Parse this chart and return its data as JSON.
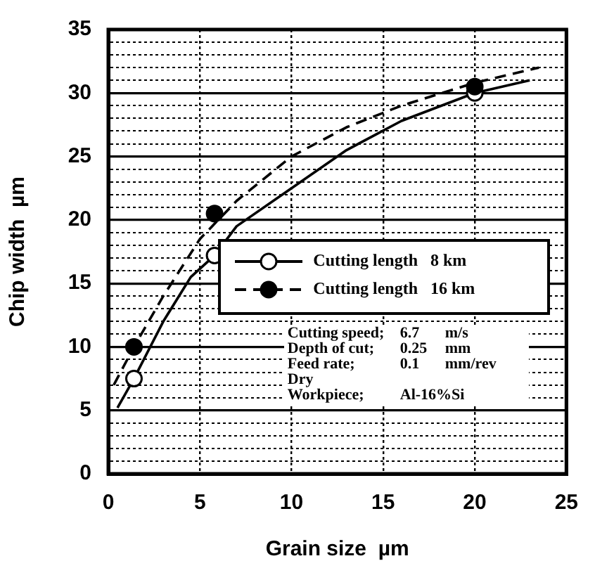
{
  "chart_data": {
    "type": "scatter",
    "xlabel": "Grain size  µm",
    "ylabel": "Chip width  µm",
    "xlim": [
      0,
      25
    ],
    "xticks": [
      0,
      5,
      10,
      15,
      20,
      25
    ],
    "ylim": [
      0,
      35
    ],
    "yticks": [
      0,
      {
        "value": 1,
        "label": null
      },
      {
        "value": 2,
        "label": null
      },
      {
        "value": 3,
        "label": null
      },
      {
        "value": 4,
        "label": null
      },
      5,
      {
        "value": 6,
        "label": null
      },
      {
        "value": 7,
        "label": null
      },
      {
        "value": 8,
        "label": null
      },
      {
        "value": 9,
        "label": null
      },
      10,
      {
        "value": 11,
        "label": null
      },
      {
        "value": 12,
        "label": null
      },
      {
        "value": 13,
        "label": null
      },
      {
        "value": 14,
        "label": null
      },
      15,
      {
        "value": 16,
        "label": null
      },
      {
        "value": 17,
        "label": null
      },
      {
        "value": 18,
        "label": null
      },
      {
        "value": 19,
        "label": null
      },
      20,
      {
        "value": 21,
        "label": null
      },
      {
        "value": 22,
        "label": null
      },
      {
        "value": 23,
        "label": null
      },
      {
        "value": 24,
        "label": null
      },
      25,
      {
        "value": 26,
        "label": null
      },
      {
        "value": 27,
        "label": null
      },
      {
        "value": 28,
        "label": null
      },
      {
        "value": 29,
        "label": null
      },
      30,
      {
        "value": 31,
        "label": null
      },
      {
        "value": 32,
        "label": null
      },
      {
        "value": 33,
        "label": null
      },
      {
        "value": 34,
        "label": null
      },
      35
    ],
    "grid": true,
    "legend": "center right",
    "series": [
      {
        "name": "Cutting length   8 km",
        "color": "#ffffff",
        "marker": "circle",
        "line_style": "solid",
        "x": [
          1.4,
          5.8,
          20
        ],
        "values": [
          7.5,
          17.2,
          30
        ]
      },
      {
        "name": "Cutting length   16 km",
        "color": "#000000",
        "marker": "circle",
        "line_style": "dashed",
        "x": [
          1.4,
          5.8,
          20
        ],
        "values": [
          10,
          20.5,
          30.5
        ]
      },
      {
        "type": "line",
        "color": "#000000",
        "line_style": "solid",
        "marker": "none",
        "x": [
          0.5,
          1.4,
          3,
          4.5,
          5.8,
          7,
          10,
          13,
          16,
          20,
          23
        ],
        "values": [
          5.2,
          7.5,
          12,
          15.5,
          17.2,
          19.5,
          22.5,
          25.5,
          27.8,
          30,
          31
        ]
      },
      {
        "type": "line",
        "color": "#000000",
        "line_style": "dashed",
        "marker": "none",
        "x": [
          0.3,
          1.4,
          3,
          5,
          7,
          10,
          13,
          16,
          20,
          23.5
        ],
        "values": [
          7,
          10,
          14,
          18.5,
          21.5,
          25,
          27.3,
          29,
          30.8,
          32
        ]
      }
    ],
    "annotations": [
      "Cutting speed;\t6.7\tm/s",
      "Depth of cut;\t0.25\tmm",
      "Feed rate;\t0.1\tmm/rev",
      "Dry",
      "Workpiece;\tAl-16%Si"
    ]
  }
}
